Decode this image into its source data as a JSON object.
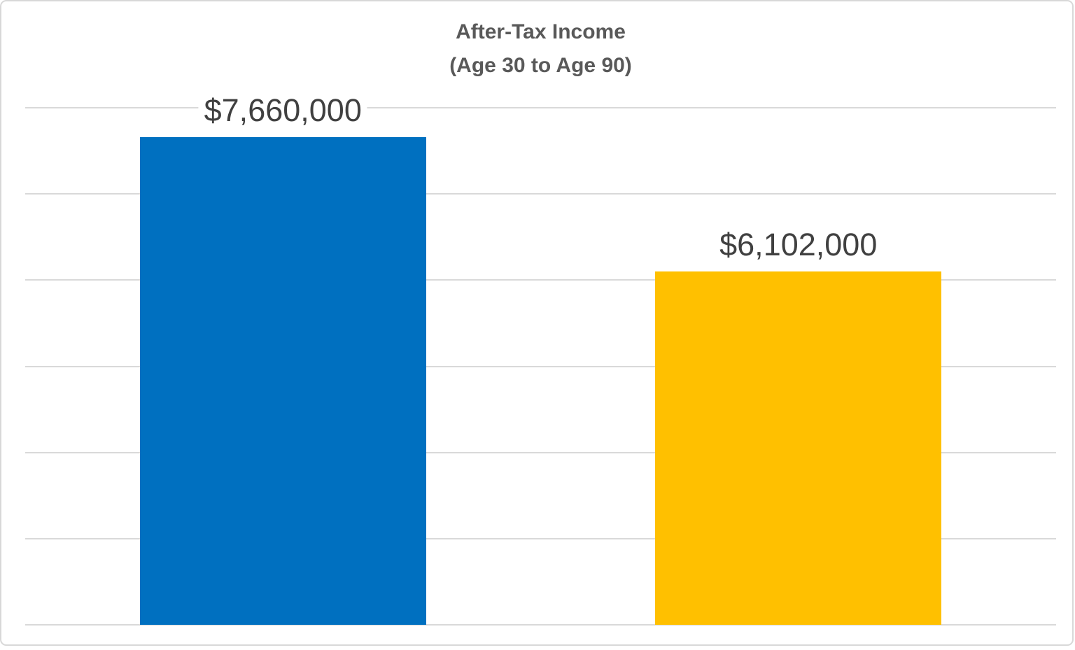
{
  "chart_data": {
    "type": "bar",
    "title": "After-Tax Income (Age 30 to Age 90)",
    "title_lines": [
      "After-Tax Income",
      "(Age 30 to Age 90)"
    ],
    "bars": [
      {
        "name": "after-tax-income-bar-1",
        "label": "$7,660,000",
        "value": 7660000,
        "color": "#0070C0"
      },
      {
        "name": "after-tax-income-bar-2",
        "label": "$6,102,000",
        "value": 6102000,
        "color": "#FFC000"
      }
    ],
    "ylim": [
      2000000,
      8000000
    ],
    "gridline_step": 1000000,
    "grid": true,
    "legend_position": "none",
    "axis_tick_labels": "none",
    "xlabel": "",
    "ylabel": "",
    "colors": {
      "title": "#595959",
      "data_label": "#404040",
      "gridline": "#D9D9D9",
      "background": "#FFFFFF",
      "card_border": "#D8D8D8"
    }
  }
}
